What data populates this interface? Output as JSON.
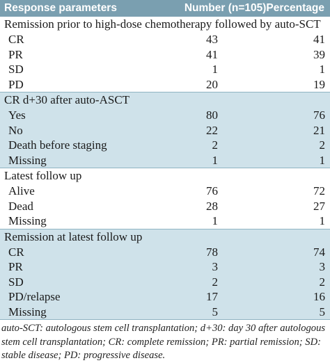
{
  "header": {
    "col1": "Response parameters",
    "col2": "Number (n=105)",
    "col3": "Percentage"
  },
  "sections": [
    {
      "title": "Remission prior to high-dose chemotherapy followed by auto-SCT",
      "shaded": false,
      "rows": [
        {
          "label": "CR",
          "number": "43",
          "percentage": "41"
        },
        {
          "label": "PR",
          "number": "41",
          "percentage": "39"
        },
        {
          "label": "SD",
          "number": "1",
          "percentage": "1"
        },
        {
          "label": "PD",
          "number": "20",
          "percentage": "19"
        }
      ]
    },
    {
      "title": "CR d+30 after auto-ASCT",
      "shaded": true,
      "rows": [
        {
          "label": "Yes",
          "number": "80",
          "percentage": "76"
        },
        {
          "label": "No",
          "number": "22",
          "percentage": "21"
        },
        {
          "label": "Death before staging",
          "number": "2",
          "percentage": "2"
        },
        {
          "label": "Missing",
          "number": "1",
          "percentage": "1"
        }
      ]
    },
    {
      "title": "Latest follow up",
      "shaded": false,
      "rows": [
        {
          "label": "Alive",
          "number": "76",
          "percentage": "72"
        },
        {
          "label": "Dead",
          "number": "28",
          "percentage": "27"
        },
        {
          "label": "Missing",
          "number": "1",
          "percentage": "1"
        }
      ]
    },
    {
      "title": "Remission at latest follow up",
      "shaded": true,
      "rows": [
        {
          "label": "CR",
          "number": "78",
          "percentage": "74"
        },
        {
          "label": "PR",
          "number": "3",
          "percentage": "3"
        },
        {
          "label": "SD",
          "number": "2",
          "percentage": "2"
        },
        {
          "label": "PD/relapse",
          "number": "17",
          "percentage": "16"
        },
        {
          "label": "Missing",
          "number": "5",
          "percentage": "5"
        }
      ]
    }
  ],
  "footnote": "auto-SCT: autologous stem cell transplantation; d+30: day 30 after autologous stem cell transplantation; CR: complete remission; PR: partial remission; SD: stable disease; PD: progressive disease."
}
